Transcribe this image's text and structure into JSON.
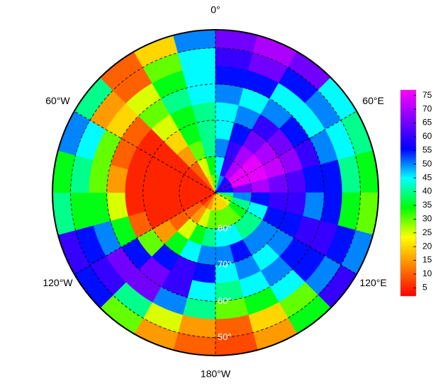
{
  "chart_data": {
    "type": "polar-heatmap",
    "lat_edges": [
      -90,
      -85,
      -80,
      -75,
      -70,
      -65,
      -60,
      -55,
      -50,
      -45
    ],
    "lon_edges": [
      -180,
      -165,
      -150,
      -135,
      -120,
      -105,
      -90,
      -75,
      -60,
      -45,
      -30,
      -15,
      0,
      15,
      30,
      45,
      60,
      75,
      90,
      105,
      120,
      135,
      150,
      165,
      180
    ],
    "lat_lim": [
      -90,
      -45
    ],
    "values": [
      [
        20,
        15,
        10,
        5,
        5,
        5,
        5,
        5,
        5,
        10,
        20,
        30,
        40,
        50,
        55,
        60,
        60,
        55,
        40,
        30,
        25,
        20,
        20,
        20
      ],
      [
        30,
        25,
        15,
        10,
        5,
        5,
        5,
        5,
        5,
        10,
        25,
        35,
        45,
        60,
        70,
        75,
        75,
        65,
        50,
        40,
        35,
        30,
        30,
        30
      ],
      [
        40,
        35,
        25,
        10,
        5,
        5,
        5,
        5,
        5,
        15,
        30,
        40,
        50,
        60,
        70,
        75,
        75,
        70,
        55,
        45,
        40,
        40,
        45,
        45
      ],
      [
        50,
        45,
        35,
        15,
        5,
        5,
        5,
        5,
        5,
        20,
        35,
        40,
        45,
        55,
        65,
        70,
        72,
        65,
        60,
        55,
        50,
        50,
        55,
        50
      ],
      [
        55,
        60,
        55,
        30,
        10,
        5,
        5,
        5,
        5,
        25,
        35,
        40,
        45,
        50,
        60,
        65,
        68,
        62,
        60,
        55,
        50,
        45,
        50,
        45
      ],
      [
        45,
        60,
        65,
        55,
        35,
        25,
        15,
        10,
        10,
        30,
        40,
        45,
        50,
        45,
        50,
        55,
        60,
        55,
        50,
        60,
        55,
        50,
        45,
        40
      ],
      [
        40,
        50,
        65,
        65,
        50,
        35,
        30,
        30,
        20,
        25,
        35,
        45,
        55,
        55,
        45,
        45,
        50,
        55,
        55,
        60,
        55,
        45,
        35,
        30
      ],
      [
        15,
        25,
        40,
        60,
        55,
        35,
        40,
        45,
        15,
        10,
        30,
        45,
        60,
        65,
        55,
        50,
        45,
        40,
        35,
        55,
        50,
        30,
        20,
        10
      ],
      [
        10,
        15,
        30,
        55,
        60,
        40,
        35,
        50,
        40,
        10,
        20,
        50,
        65,
        70,
        65,
        45,
        40,
        35,
        30,
        50,
        60,
        35,
        15,
        8
      ]
    ],
    "lon_ticks": [
      {
        "value": 0,
        "label": "0°"
      },
      {
        "value": 60,
        "label": "60°E"
      },
      {
        "value": 120,
        "label": "120°E"
      },
      {
        "value": 180,
        "label": "180°W"
      },
      {
        "value": -120,
        "label": "120°W"
      },
      {
        "value": -60,
        "label": "60°W"
      }
    ],
    "lat_ticks": [
      {
        "value": -80,
        "label": "80°"
      },
      {
        "value": -70,
        "label": "70°"
      },
      {
        "value": -60,
        "label": "60°"
      },
      {
        "value": -50,
        "label": "50°"
      }
    ],
    "colors": [
      "#ff0000",
      "#ff8000",
      "#ffff00",
      "#00ff00",
      "#00ffff",
      "#0000ff",
      "#8000ff",
      "#ff00ff"
    ],
    "clim": [
      2,
      77
    ],
    "cticks": [
      5,
      10,
      15,
      20,
      25,
      30,
      35,
      40,
      45,
      50,
      55,
      60,
      65,
      70,
      75
    ]
  }
}
